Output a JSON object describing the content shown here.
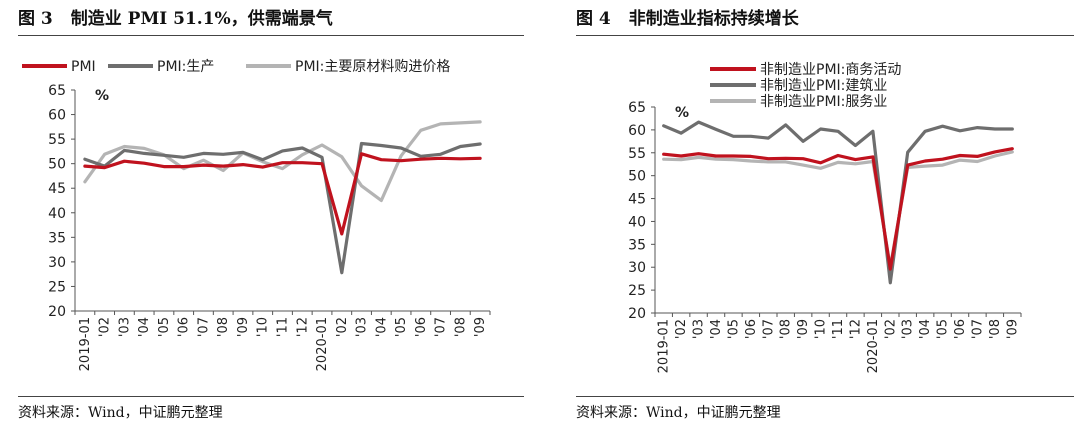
{
  "chart_data": [
    {
      "type": "line",
      "figure_no": "图 3",
      "title": "制造业 PMI 51.1%，供需端景气",
      "unit": "%",
      "source": "资料来源：Wind，中证鹏元整理",
      "ylim": [
        20,
        65
      ],
      "yticks": [
        20,
        25,
        30,
        35,
        40,
        45,
        50,
        55,
        60,
        65
      ],
      "legend_position": "top",
      "categories": [
        "2019-01",
        "'02",
        "'03",
        "'04",
        "'05",
        "'06",
        "'07",
        "'08",
        "'09",
        "'10",
        "'11",
        "'12",
        "2020-01",
        "'02",
        "'03",
        "'04",
        "'05",
        "'06",
        "'07",
        "'08",
        "'09"
      ],
      "series": [
        {
          "name": "PMI",
          "color": "#c0121e",
          "values": [
            49.5,
            49.2,
            50.5,
            50.1,
            49.4,
            49.4,
            49.7,
            49.5,
            49.8,
            49.3,
            50.2,
            50.2,
            50.0,
            35.7,
            52.0,
            50.8,
            50.6,
            50.9,
            51.1,
            51.0,
            51.1
          ]
        },
        {
          "name": "PMI:生产",
          "color": "#6e6e6e",
          "values": [
            50.9,
            49.5,
            52.7,
            52.1,
            51.7,
            51.3,
            52.1,
            51.9,
            52.3,
            50.8,
            52.6,
            53.2,
            51.3,
            27.8,
            54.1,
            53.7,
            53.2,
            51.5,
            51.9,
            53.5,
            54.0
          ]
        },
        {
          "name": "PMI:主要原材料购进价格",
          "color": "#b4b4b4",
          "values": [
            46.3,
            51.9,
            53.5,
            53.1,
            51.8,
            49.0,
            50.7,
            48.6,
            52.2,
            50.4,
            49.0,
            51.8,
            53.8,
            51.4,
            45.5,
            42.5,
            51.6,
            56.8,
            58.1,
            58.3,
            58.5
          ]
        }
      ]
    },
    {
      "type": "line",
      "figure_no": "图 4",
      "title": "非制造业指标持续增长",
      "unit": "%",
      "source": "资料来源：Wind，中证鹏元整理",
      "ylim": [
        20,
        65
      ],
      "yticks": [
        20,
        25,
        30,
        35,
        40,
        45,
        50,
        55,
        60,
        65
      ],
      "legend_position": "top",
      "categories": [
        "2019-01",
        "'02",
        "'03",
        "'04",
        "'05",
        "'06",
        "'07",
        "'08",
        "'09",
        "'10",
        "'11",
        "'12",
        "2020-01",
        "'02",
        "'03",
        "'04",
        "'05",
        "'06",
        "'07",
        "'08",
        "'09"
      ],
      "series": [
        {
          "name": "非制造业PMI:商务活动",
          "color": "#c0121e",
          "values": [
            54.7,
            54.3,
            54.8,
            54.3,
            54.3,
            54.2,
            53.7,
            53.8,
            53.7,
            52.8,
            54.4,
            53.5,
            54.1,
            29.6,
            52.3,
            53.2,
            53.6,
            54.4,
            54.2,
            55.2,
            55.9
          ]
        },
        {
          "name": "非制造业PMI:建筑业",
          "color": "#6e6e6e",
          "values": [
            60.9,
            59.3,
            61.7,
            60.1,
            58.6,
            58.6,
            58.2,
            61.1,
            57.5,
            60.2,
            59.7,
            56.6,
            59.7,
            26.6,
            55.1,
            59.7,
            60.8,
            59.8,
            60.5,
            60.2,
            60.2
          ]
        },
        {
          "name": "非制造业PMI:服务业",
          "color": "#b4b4b4",
          "values": [
            53.6,
            53.5,
            54.0,
            53.6,
            53.5,
            53.2,
            53.0,
            53.0,
            52.3,
            51.6,
            52.9,
            52.6,
            53.1,
            30.1,
            51.8,
            52.1,
            52.3,
            53.4,
            53.1,
            54.3,
            55.2
          ]
        }
      ]
    }
  ]
}
